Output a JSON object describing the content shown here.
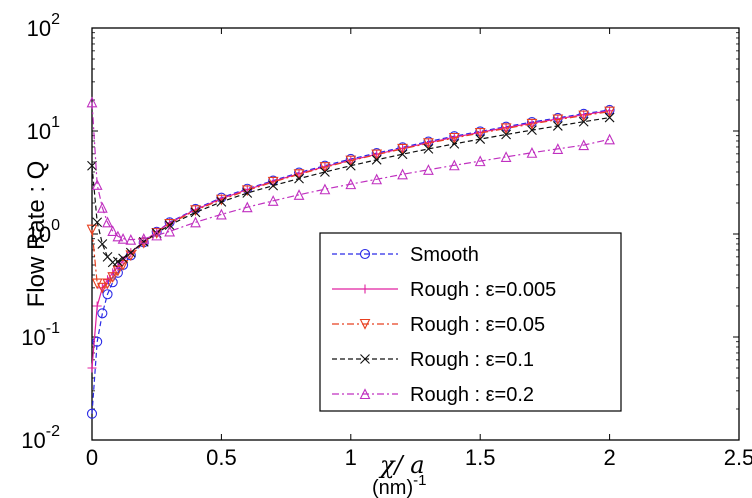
{
  "chart_data": {
    "type": "line",
    "title": "",
    "ylabel": "Flow Rate : Q",
    "xlabel_symbol": "χ/ a",
    "xlabel_unit": "(nm)",
    "xlabel_unit_exp": "-1",
    "xlim": [
      0,
      2.5
    ],
    "ylim": [
      0.01,
      100
    ],
    "yscale": "log",
    "grid": false,
    "legend_position": "bottom-right",
    "x_ticks": [
      {
        "value": 0,
        "label": "0"
      },
      {
        "value": 0.5,
        "label": "0.5"
      },
      {
        "value": 1,
        "label": "1"
      },
      {
        "value": 1.5,
        "label": "1.5"
      },
      {
        "value": 2,
        "label": "2"
      },
      {
        "value": 2.5,
        "label": "2.5"
      }
    ],
    "y_ticks": [
      {
        "value": 0.01,
        "exp": "-2"
      },
      {
        "value": 0.1,
        "exp": "-1"
      },
      {
        "value": 1,
        "exp": "0"
      },
      {
        "value": 10,
        "exp": "1"
      },
      {
        "value": 100,
        "exp": "2"
      }
    ],
    "y_tick_base": "10",
    "series": [
      {
        "name": "Smooth",
        "color": "#2a2ae6",
        "marker": "circle",
        "dash": "dashed",
        "x": [
          0,
          0.02,
          0.04,
          0.06,
          0.08,
          0.1,
          0.12,
          0.15,
          0.2,
          0.25,
          0.3,
          0.4,
          0.5,
          0.6,
          0.7,
          0.8,
          0.9,
          1.0,
          1.1,
          1.2,
          1.3,
          1.4,
          1.5,
          1.6,
          1.7,
          1.8,
          1.9,
          2.0
        ],
        "y": [
          0.018,
          0.09,
          0.17,
          0.26,
          0.34,
          0.42,
          0.5,
          0.62,
          0.83,
          1.05,
          1.3,
          1.75,
          2.25,
          2.75,
          3.3,
          3.95,
          4.6,
          5.35,
          6.1,
          6.95,
          7.9,
          8.9,
          9.9,
          11.0,
          12.2,
          13.4,
          14.7,
          16.0
        ]
      },
      {
        "name": "Rough : ε=0.005",
        "color": "#e020a0",
        "marker": "plus",
        "dash": "solid",
        "x": [
          0,
          0.02,
          0.04,
          0.06,
          0.08,
          0.1,
          0.12,
          0.15,
          0.2,
          0.25,
          0.3,
          0.4,
          0.5,
          0.6,
          0.7,
          0.8,
          0.9,
          1.0,
          1.1,
          1.2,
          1.3,
          1.4,
          1.5,
          1.6,
          1.7,
          1.8,
          1.9,
          2.0
        ],
        "y": [
          0.05,
          0.2,
          0.3,
          0.36,
          0.42,
          0.48,
          0.55,
          0.66,
          0.85,
          1.05,
          1.28,
          1.72,
          2.2,
          2.7,
          3.25,
          3.85,
          4.5,
          5.2,
          5.95,
          6.8,
          7.7,
          8.7,
          9.7,
          10.8,
          11.9,
          13.1,
          14.4,
          15.7
        ]
      },
      {
        "name": "Rough : ε=0.05",
        "color": "#e84020",
        "marker": "triangle-down",
        "dash": "dashdot",
        "x": [
          0,
          0.02,
          0.04,
          0.06,
          0.08,
          0.1,
          0.12,
          0.15,
          0.2,
          0.25,
          0.3,
          0.4,
          0.5,
          0.6,
          0.7,
          0.8,
          0.9,
          1.0,
          1.1,
          1.2,
          1.3,
          1.4,
          1.5,
          1.6,
          1.7,
          1.8,
          1.9,
          2.0
        ],
        "y": [
          1.1,
          0.33,
          0.3,
          0.33,
          0.38,
          0.44,
          0.5,
          0.62,
          0.82,
          1.02,
          1.25,
          1.7,
          2.15,
          2.65,
          3.2,
          3.8,
          4.45,
          5.15,
          5.9,
          6.7,
          7.6,
          8.55,
          9.55,
          10.6,
          11.7,
          12.9,
          14.1,
          15.4
        ]
      },
      {
        "name": "Rough : ε=0.1",
        "color": "#101010",
        "marker": "x",
        "dash": "dashed",
        "x": [
          0,
          0.02,
          0.04,
          0.06,
          0.08,
          0.1,
          0.12,
          0.15,
          0.2,
          0.25,
          0.3,
          0.4,
          0.5,
          0.6,
          0.7,
          0.8,
          0.9,
          1.0,
          1.1,
          1.2,
          1.3,
          1.4,
          1.5,
          1.6,
          1.7,
          1.8,
          1.9,
          2.0
        ],
        "y": [
          4.6,
          1.3,
          0.8,
          0.6,
          0.53,
          0.54,
          0.58,
          0.66,
          0.84,
          1.02,
          1.22,
          1.62,
          2.05,
          2.5,
          2.95,
          3.45,
          4.0,
          4.6,
          5.25,
          5.95,
          6.7,
          7.5,
          8.35,
          9.25,
          10.2,
          11.2,
          12.3,
          13.5
        ]
      },
      {
        "name": "Rough : ε=0.2",
        "color": "#c030c0",
        "marker": "triangle-up",
        "dash": "dashdot",
        "x": [
          0,
          0.02,
          0.04,
          0.06,
          0.08,
          0.1,
          0.12,
          0.15,
          0.2,
          0.25,
          0.3,
          0.4,
          0.5,
          0.6,
          0.7,
          0.8,
          0.9,
          1.0,
          1.1,
          1.2,
          1.3,
          1.4,
          1.5,
          1.6,
          1.7,
          1.8,
          1.9,
          2.0
        ],
        "y": [
          19,
          3.0,
          1.8,
          1.3,
          1.07,
          0.95,
          0.9,
          0.88,
          0.9,
          0.97,
          1.06,
          1.3,
          1.55,
          1.82,
          2.1,
          2.4,
          2.72,
          3.05,
          3.4,
          3.8,
          4.2,
          4.65,
          5.1,
          5.6,
          6.15,
          6.7,
          7.3,
          8.3
        ]
      }
    ]
  }
}
